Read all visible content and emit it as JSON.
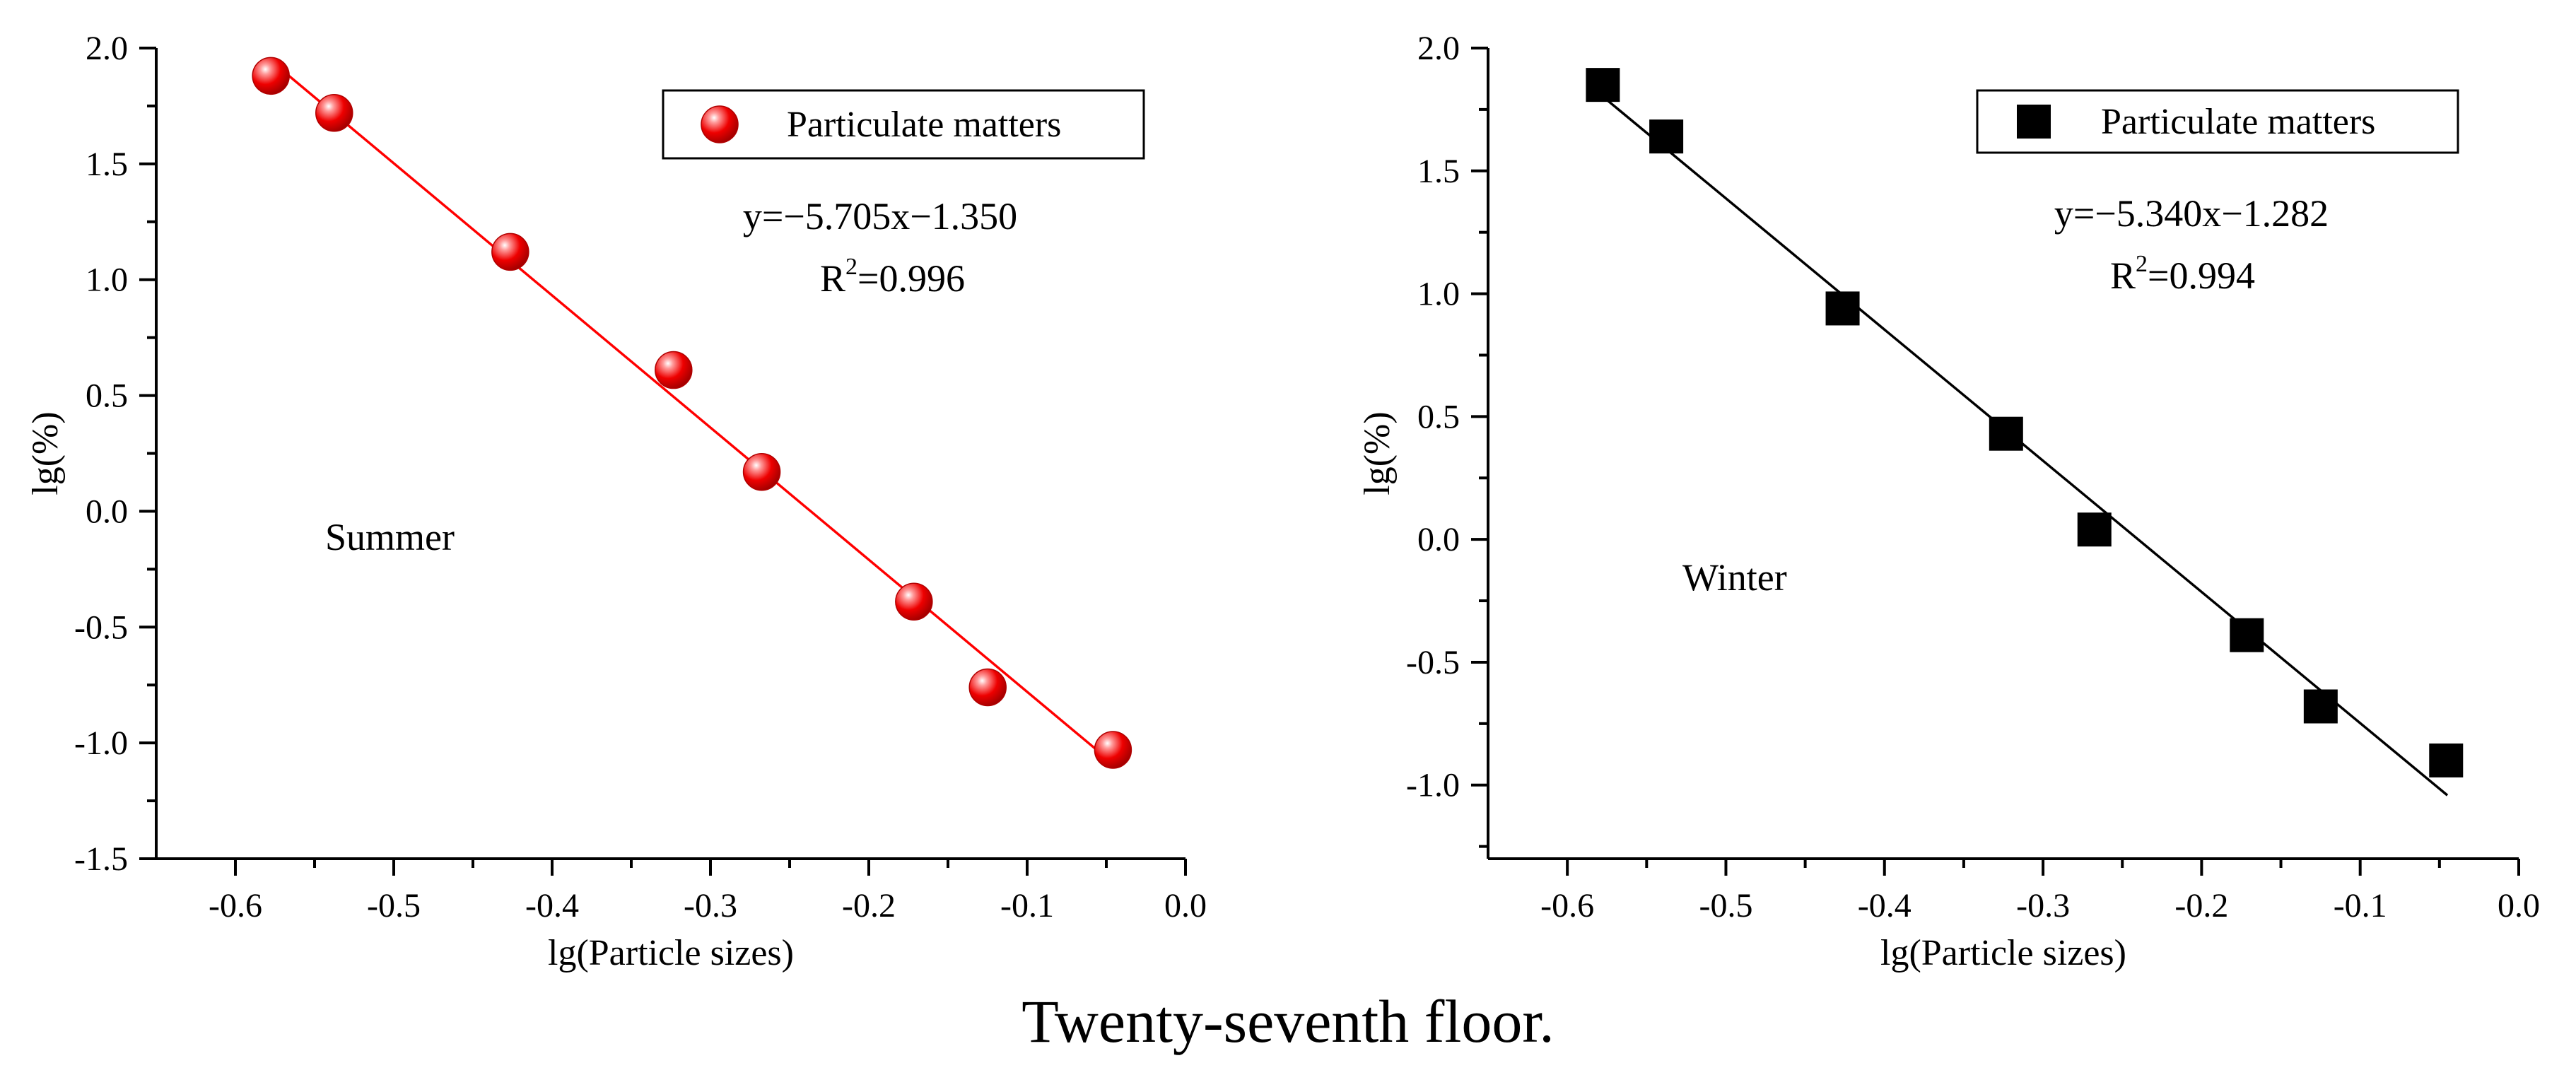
{
  "caption": "Twenty-seventh floor.",
  "chart_data": [
    {
      "type": "scatter",
      "name": "summer-chart",
      "series_name": "Particulate matters",
      "marker": "sphere",
      "color": "#ff0000",
      "x": [
        -0.5776,
        -0.5376,
        -0.4264,
        -0.3233,
        -0.2676,
        -0.1715,
        -0.1249,
        -0.0458
      ],
      "y": [
        1.88,
        1.72,
        1.12,
        0.61,
        0.17,
        -0.39,
        -0.76,
        -1.03
      ],
      "fit": {
        "slope": -5.705,
        "intercept": -1.35,
        "x_range": [
          -0.575,
          -0.045
        ]
      },
      "equation": "y=−5.705x−1.350",
      "r2_prefix": "R",
      "r2_sup": "2",
      "r2_value": "=0.996",
      "annotation": "Summer",
      "xlabel": "lg(Particle sizes)",
      "ylabel": "lg(%)",
      "xlim": [
        -0.65,
        0.0
      ],
      "ylim": [
        -1.5,
        2.0
      ],
      "xticks": [
        -0.6,
        -0.5,
        -0.4,
        -0.3,
        -0.2,
        -0.1,
        0.0
      ],
      "xtick_labels": [
        "-0.6",
        "-0.5",
        "-0.4",
        "-0.3",
        "-0.2",
        "-0.1",
        "0.0"
      ],
      "yticks": [
        -1.5,
        -1.0,
        -0.5,
        0.0,
        0.5,
        1.0,
        1.5,
        2.0
      ],
      "ytick_labels": [
        "-1.5",
        "-1.0",
        "-0.5",
        "0.0",
        "0.5",
        "1.0",
        "1.5",
        "2.0"
      ],
      "legend_position": "top-right"
    },
    {
      "type": "scatter",
      "name": "winter-chart",
      "series_name": "Particulate matters",
      "marker": "square",
      "color": "#000000",
      "x": [
        -0.5776,
        -0.5376,
        -0.4264,
        -0.3233,
        -0.2676,
        -0.1715,
        -0.1249,
        -0.0458
      ],
      "y": [
        1.85,
        1.64,
        0.94,
        0.43,
        0.04,
        -0.39,
        -0.68,
        -0.9
      ],
      "fit": {
        "slope": -5.34,
        "intercept": -1.282,
        "x_range": [
          -0.585,
          -0.045
        ]
      },
      "equation": "y=−5.340x−1.282",
      "r2_prefix": "R",
      "r2_sup": "2",
      "r2_value": "=0.994",
      "annotation": "Winter",
      "xlabel": "lg(Particle sizes)",
      "ylabel": "lg(%)",
      "xlim": [
        -0.65,
        0.0
      ],
      "ylim": [
        -1.3,
        2.0
      ],
      "xticks": [
        -0.6,
        -0.5,
        -0.4,
        -0.3,
        -0.2,
        -0.1,
        0.0
      ],
      "xtick_labels": [
        "-0.6",
        "-0.5",
        "-0.4",
        "-0.3",
        "-0.2",
        "-0.1",
        "0.0"
      ],
      "yticks": [
        -1.0,
        -0.5,
        0.0,
        0.5,
        1.0,
        1.5,
        2.0
      ],
      "ytick_labels": [
        "-1.0",
        "-0.5",
        "0.0",
        "0.5",
        "1.0",
        "1.5",
        "2.0"
      ],
      "legend_position": "top-right"
    }
  ]
}
